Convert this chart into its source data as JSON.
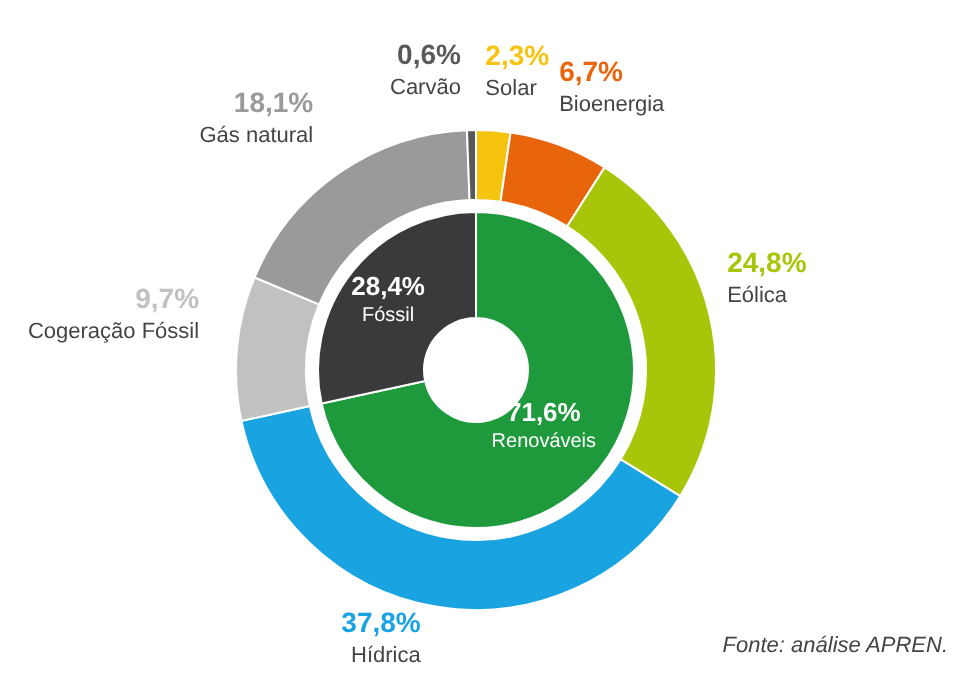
{
  "chart_data": [
    {
      "type": "donut",
      "categories": [
        "Renováveis",
        "Fóssil"
      ],
      "values": [
        71.6,
        28.4
      ],
      "colors": [
        "#1e9a3c",
        "#3a3a3c"
      ],
      "value_labels": [
        "71,6%",
        "28,4%"
      ]
    },
    {
      "type": "donut",
      "categories": [
        "Solar",
        "Bioenergia",
        "Eólica",
        "Hídrica",
        "Cogeração Fóssil",
        "Gás natural",
        "Carvão"
      ],
      "values": [
        2.3,
        6.7,
        24.8,
        37.8,
        9.7,
        18.1,
        0.6
      ],
      "colors": [
        "#f6c40f",
        "#e8650c",
        "#a9c50a",
        "#19a4e1",
        "#c1c1c1",
        "#9a9a9a",
        "#59595b"
      ],
      "value_labels": [
        "2,3%",
        "6,7%",
        "24,8%",
        "37,8%",
        "9,7%",
        "18,1%",
        "0,6%"
      ],
      "annotations": [
        "Fonte: análise APREN."
      ]
    }
  ]
}
